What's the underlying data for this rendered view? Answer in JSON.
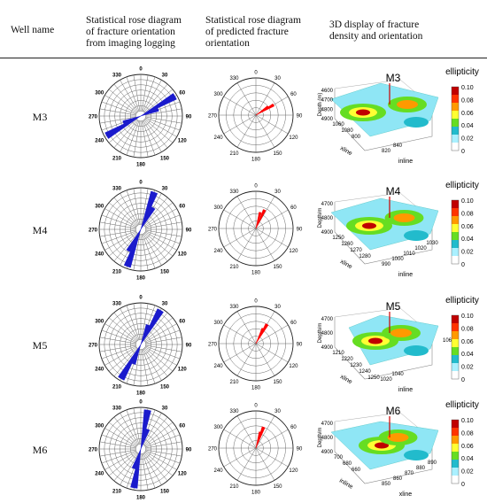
{
  "headers": {
    "well": "Well name",
    "imaging": [
      "Statistical rose diagram",
      "of fracture orientation",
      "from imaging logging"
    ],
    "predicted": [
      "Statistical rose diagram",
      "of predicted fracture",
      "orientation"
    ],
    "display3d": [
      "3D display of fracture",
      "density and orientation"
    ]
  },
  "rose_labels": [
    "0",
    "30",
    "60",
    "90",
    "120",
    "150",
    "180",
    "210",
    "240",
    "270",
    "300",
    "330"
  ],
  "colorbar": {
    "title": "ellipticity",
    "ticks": [
      "0.10",
      "0.08",
      "0.06",
      "0.04",
      "0.02",
      "0"
    ],
    "colors": [
      "#c00000",
      "#ff3300",
      "#ff9900",
      "#ffff33",
      "#66dd22",
      "#22bbcc",
      "#aaf0ff",
      "#ffffff"
    ]
  },
  "rows": [
    {
      "well": "M3",
      "imaging_rose": {
        "color": "#1a1acc",
        "petals": [
          {
            "angle": 60,
            "r": 0.95
          },
          {
            "angle": 240,
            "r": 0.95
          },
          {
            "angle": 70,
            "r": 0.45
          },
          {
            "angle": 250,
            "r": 0.45
          }
        ]
      },
      "predicted_rose": {
        "color": "#ff0000",
        "petals": [
          {
            "angle": 60,
            "r": 0.55
          },
          {
            "angle": 55,
            "r": 0.4
          }
        ]
      },
      "surface": {
        "well_label": "M3",
        "z_axis": "Depth (m)",
        "z_ticks": [
          "4600",
          "4700",
          "4800",
          "4900"
        ],
        "axis_a": "xline",
        "a_ticks": [
          "1060",
          "1080",
          "800"
        ],
        "axis_b": "inline",
        "b_ticks": [
          "820",
          "840"
        ],
        "extra_ticks": []
      }
    },
    {
      "well": "M4",
      "imaging_rose": {
        "color": "#1a1acc",
        "petals": [
          {
            "angle": 20,
            "r": 0.95
          },
          {
            "angle": 200,
            "r": 0.95
          },
          {
            "angle": 30,
            "r": 0.6
          },
          {
            "angle": 210,
            "r": 0.6
          }
        ]
      },
      "predicted_rose": {
        "color": "#ff0000",
        "petals": [
          {
            "angle": 25,
            "r": 0.55
          },
          {
            "angle": 15,
            "r": 0.45
          }
        ]
      },
      "surface": {
        "well_label": "M4",
        "z_axis": "Depth/m",
        "z_ticks": [
          "4700",
          "4800",
          "4900"
        ],
        "axis_a": "xline",
        "a_ticks": [
          "1250",
          "1260",
          "1270",
          "1280"
        ],
        "axis_b": "inline",
        "b_ticks": [
          "990",
          "1000",
          "1010",
          "1020",
          "1030"
        ],
        "extra_ticks": []
      }
    },
    {
      "well": "M5",
      "imaging_rose": {
        "color": "#1a1acc",
        "petals": [
          {
            "angle": 30,
            "r": 0.95
          },
          {
            "angle": 210,
            "r": 0.95
          },
          {
            "angle": 20,
            "r": 0.5
          },
          {
            "angle": 200,
            "r": 0.5
          }
        ]
      },
      "predicted_rose": {
        "color": "#ff0000",
        "petals": [
          {
            "angle": 30,
            "r": 0.6
          },
          {
            "angle": 25,
            "r": 0.45
          }
        ]
      },
      "surface": {
        "well_label": "M5",
        "z_axis": "Depth/m",
        "z_ticks": [
          "4700",
          "4800",
          "4900"
        ],
        "axis_a": "xline",
        "a_ticks": [
          "1210",
          "1220",
          "1230",
          "1240",
          "1250"
        ],
        "axis_b": "inline",
        "b_ticks": [
          "1020",
          "1040"
        ],
        "extra_ticks": [
          "1060"
        ]
      }
    },
    {
      "well": "M6",
      "imaging_rose": {
        "color": "#1a1acc",
        "petals": [
          {
            "angle": 10,
            "r": 0.95
          },
          {
            "angle": 190,
            "r": 0.95
          },
          {
            "angle": 20,
            "r": 0.5
          },
          {
            "angle": 200,
            "r": 0.5
          }
        ]
      },
      "predicted_rose": {
        "color": "#ff0000",
        "petals": [
          {
            "angle": 20,
            "r": 0.6
          },
          {
            "angle": 15,
            "r": 0.45
          }
        ]
      },
      "surface": {
        "well_label": "M6",
        "z_axis": "Depth/m",
        "z_ticks": [
          "4700",
          "4800",
          "4900"
        ],
        "axis_a": "inline",
        "a_ticks": [
          "700",
          "680",
          "660"
        ],
        "axis_b": "xline",
        "b_ticks": [
          "850",
          "860",
          "870",
          "880",
          "890"
        ],
        "extra_ticks": []
      }
    }
  ]
}
